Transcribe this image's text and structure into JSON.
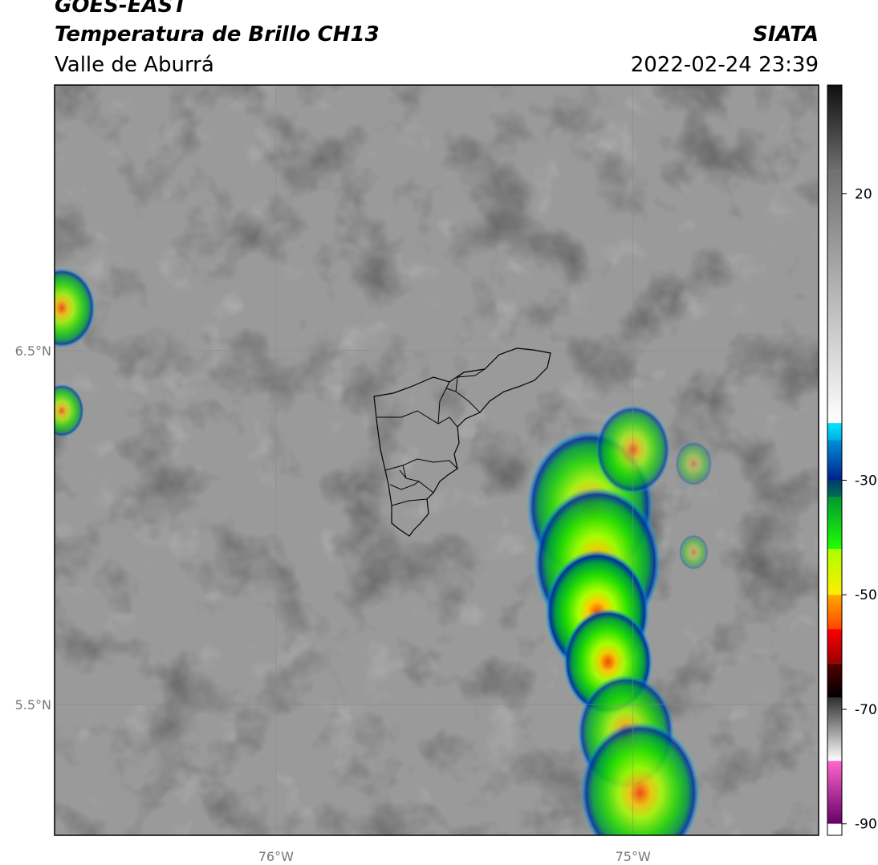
{
  "title": {
    "satellite": "GOES-EAST",
    "product": "Temperatura de Brillo CH13",
    "region": "Valle de Aburrá",
    "source": "SIATA",
    "datetime": "2022-02-24 23:39"
  },
  "axes": {
    "lat_labels": [
      {
        "value": 6.5,
        "text": "6.5°N"
      },
      {
        "value": 5.5,
        "text": "5.5°N"
      }
    ],
    "lon_labels": [
      {
        "value": -76.0,
        "text": "76°W"
      },
      {
        "value": -75.0,
        "text": "75°W"
      }
    ],
    "lon_range": [
      -76.62,
      -74.48
    ],
    "lat_range": [
      5.13,
      7.25
    ]
  },
  "colorbar": {
    "range": [
      -92,
      39
    ],
    "ticks": [
      {
        "value": 20,
        "text": "20"
      },
      {
        "value": -30,
        "text": "-30"
      },
      {
        "value": -50,
        "text": "-50"
      },
      {
        "value": -70,
        "text": "-70"
      },
      {
        "value": -90,
        "text": "-90"
      }
    ],
    "segments": [
      {
        "from": 39,
        "to": 24,
        "colors": [
          "#0f0f0f",
          "#707070"
        ]
      },
      {
        "from": 24,
        "to": -20,
        "colors": [
          "#707070",
          "#ffffff"
        ]
      },
      {
        "from": -20,
        "to": -23,
        "colors": [
          "#00e5ff",
          "#00b0e0"
        ]
      },
      {
        "from": -23,
        "to": -30,
        "colors": [
          "#0090d8",
          "#001f8a"
        ]
      },
      {
        "from": -30,
        "to": -33,
        "colors": [
          "#003c70",
          "#007050"
        ]
      },
      {
        "from": -33,
        "to": -42,
        "colors": [
          "#009a30",
          "#22ff00"
        ]
      },
      {
        "from": -42,
        "to": -50,
        "colors": [
          "#aaff00",
          "#ffee00"
        ]
      },
      {
        "from": -50,
        "to": -56,
        "colors": [
          "#ffaa00",
          "#ff4400"
        ]
      },
      {
        "from": -56,
        "to": -62,
        "colors": [
          "#ff0000",
          "#990000"
        ]
      },
      {
        "from": -62,
        "to": -68,
        "colors": [
          "#550000",
          "#000000"
        ]
      },
      {
        "from": -68,
        "to": -79,
        "colors": [
          "#303030",
          "#ffffff"
        ]
      },
      {
        "from": -79,
        "to": -90,
        "colors": [
          "#ff66cc",
          "#660066"
        ]
      },
      {
        "from": -90,
        "to": -92,
        "colors": [
          "#ffffff",
          "#ffffff"
        ]
      }
    ]
  },
  "colors": {
    "background_gray": "#9a9a9a",
    "cloud_blue": "#1030a0",
    "cloud_cyan": "#00c8ff",
    "cloud_green": "#22dd00",
    "cloud_yellow": "#eeff00",
    "cloud_red": "#ff4400",
    "boundary": "#000000",
    "grid": "#888888"
  },
  "cloud_cores": [
    {
      "lon": -75.12,
      "lat": 6.06,
      "r": 0.17,
      "level": 0.85
    },
    {
      "lon": -75.1,
      "lat": 5.9,
      "r": 0.17,
      "level": 0.9
    },
    {
      "lon": -75.1,
      "lat": 5.76,
      "r": 0.14,
      "level": 1.0
    },
    {
      "lon": -75.07,
      "lat": 5.62,
      "r": 0.12,
      "level": 0.95
    },
    {
      "lon": -75.02,
      "lat": 5.42,
      "r": 0.13,
      "level": 0.8
    },
    {
      "lon": -74.98,
      "lat": 5.25,
      "r": 0.16,
      "level": 0.85
    },
    {
      "lon": -75.0,
      "lat": 6.22,
      "r": 0.1,
      "level": 0.7
    },
    {
      "lon": -76.6,
      "lat": 6.62,
      "r": 0.09,
      "level": 0.8
    },
    {
      "lon": -76.6,
      "lat": 6.33,
      "r": 0.06,
      "level": 0.7
    },
    {
      "lon": -74.83,
      "lat": 6.18,
      "r": 0.05,
      "level": 0.35
    },
    {
      "lon": -74.83,
      "lat": 5.93,
      "r": 0.04,
      "level": 0.35
    }
  ]
}
